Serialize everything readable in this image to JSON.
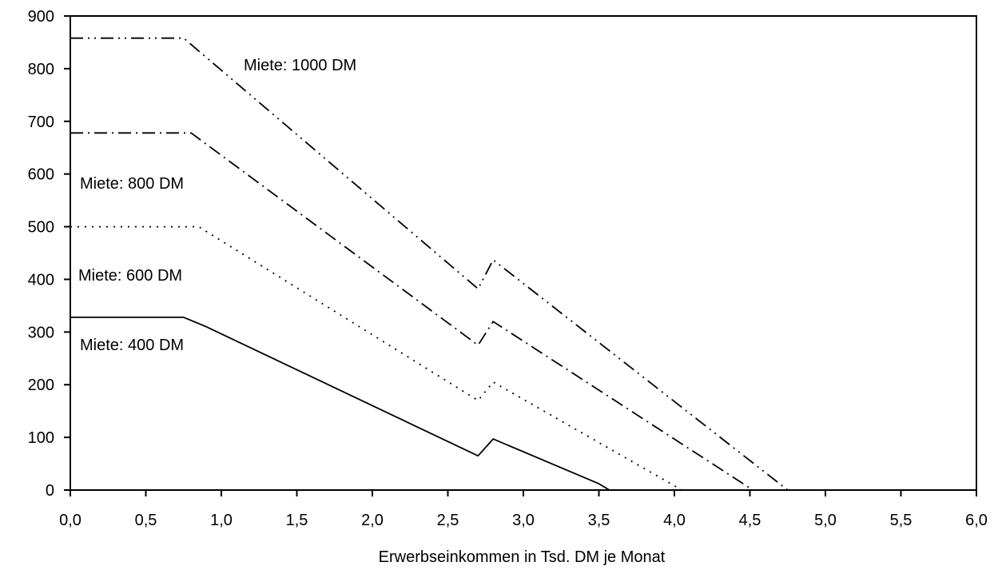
{
  "chart_data": {
    "type": "line",
    "title": "",
    "xlabel": "Erwerbseinkommen in Tsd. DM je Monat",
    "ylabel": "",
    "xlim": [
      0,
      6
    ],
    "ylim": [
      0,
      900
    ],
    "grid": false,
    "x_ticks": [
      "0,0",
      "0,5",
      "1,0",
      "1,5",
      "2,0",
      "2,5",
      "3,0",
      "3,5",
      "4,0",
      "4,5",
      "5,0",
      "5,5",
      "6,0"
    ],
    "y_ticks": [
      "0",
      "100",
      "200",
      "300",
      "400",
      "500",
      "600",
      "700",
      "800",
      "900"
    ],
    "series": [
      {
        "name": "Miete: 400 DM",
        "style": "solid",
        "color": "#000000",
        "points": [
          [
            0,
            328
          ],
          [
            0.75,
            328
          ],
          [
            0.9,
            310
          ],
          [
            2.7,
            65
          ],
          [
            2.8,
            97
          ],
          [
            3.5,
            12
          ],
          [
            3.57,
            0
          ],
          [
            6.0,
            0
          ]
        ]
      },
      {
        "name": "Miete: 600 DM",
        "style": "dotted",
        "color": "#000000",
        "points": [
          [
            0,
            500
          ],
          [
            0.85,
            500
          ],
          [
            2.7,
            170
          ],
          [
            2.8,
            205
          ],
          [
            4.05,
            0
          ]
        ]
      },
      {
        "name": "Miete: 800 DM",
        "style": "dashdot",
        "color": "#000000",
        "points": [
          [
            0,
            678
          ],
          [
            0.8,
            678
          ],
          [
            2.7,
            275
          ],
          [
            2.8,
            320
          ],
          [
            4.52,
            0
          ]
        ]
      },
      {
        "name": "Miete: 1000 DM",
        "style": "dashdotdot",
        "color": "#000000",
        "points": [
          [
            0,
            858
          ],
          [
            0.75,
            858
          ],
          [
            2.7,
            382
          ],
          [
            2.8,
            437
          ],
          [
            4.75,
            0
          ]
        ]
      }
    ]
  }
}
